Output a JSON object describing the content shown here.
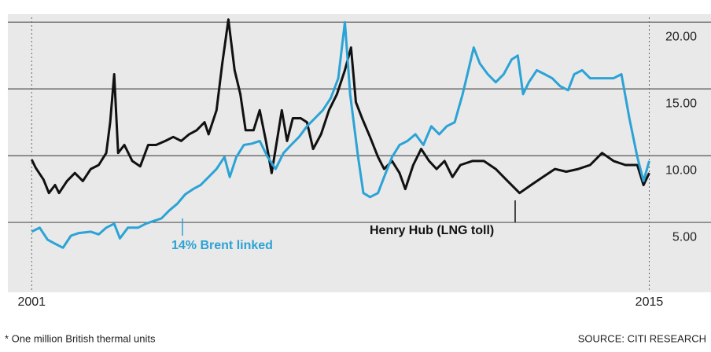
{
  "chart_data": {
    "type": "line",
    "annotations": [
      "14% Brent linked",
      "Henry Hub (LNG toll)"
    ],
    "footnote": "* One million British thermal units",
    "source": "SOURCE: CITI RESEARCH",
    "xlim": [
      2000.46,
      2016.4
    ],
    "xticks": [
      2001,
      2015
    ],
    "ylim": [
      0,
      20.6
    ],
    "yticks": [
      {
        "value": 5,
        "label": "5.00"
      },
      {
        "value": 10,
        "label": "10.00"
      },
      {
        "value": 15,
        "label": "15.00"
      },
      {
        "value": 20,
        "label": "20.00"
      }
    ],
    "grid": true,
    "series": [
      {
        "name": "Henry Hub (LNG toll)",
        "color": "#111111",
        "x": [
          2001.0,
          2001.09,
          2001.27,
          2001.39,
          2001.53,
          2001.62,
          2001.8,
          2001.98,
          2002.16,
          2002.34,
          2002.52,
          2002.69,
          2002.78,
          2002.87,
          2002.96,
          2003.1,
          2003.28,
          2003.46,
          2003.64,
          2003.82,
          2004.03,
          2004.21,
          2004.39,
          2004.57,
          2004.74,
          2004.92,
          2005.01,
          2005.19,
          2005.32,
          2005.46,
          2005.6,
          2005.73,
          2005.85,
          2006.03,
          2006.17,
          2006.31,
          2006.44,
          2006.56,
          2006.67,
          2006.79,
          2006.92,
          2007.1,
          2007.24,
          2007.38,
          2007.56,
          2007.74,
          2007.92,
          2008.1,
          2008.24,
          2008.35,
          2008.49,
          2008.67,
          2008.85,
          2008.99,
          2009.17,
          2009.34,
          2009.47,
          2009.65,
          2009.83,
          2010.01,
          2010.18,
          2010.36,
          2010.54,
          2010.72,
          2010.99,
          2011.25,
          2011.52,
          2011.79,
          2012.06,
          2012.32,
          2012.59,
          2012.86,
          2013.12,
          2013.39,
          2013.66,
          2013.93,
          2014.19,
          2014.46,
          2014.73,
          2014.87,
          2015.0
        ],
        "values": [
          9.7,
          9.1,
          8.2,
          7.2,
          7.8,
          7.2,
          8.1,
          8.7,
          8.1,
          9.0,
          9.3,
          10.2,
          12.5,
          16.1,
          10.2,
          10.8,
          9.6,
          9.2,
          10.8,
          10.8,
          11.1,
          11.4,
          11.1,
          11.6,
          11.9,
          12.5,
          11.6,
          13.4,
          16.9,
          20.2,
          16.4,
          14.6,
          11.9,
          11.9,
          13.4,
          11.1,
          8.7,
          11.1,
          13.4,
          11.1,
          12.8,
          12.8,
          12.5,
          10.5,
          11.6,
          13.4,
          14.6,
          16.4,
          18.1,
          14.0,
          12.8,
          11.4,
          9.9,
          9.0,
          9.6,
          8.7,
          7.5,
          9.3,
          10.5,
          9.6,
          9.0,
          9.6,
          8.4,
          9.3,
          9.6,
          9.6,
          9.0,
          8.1,
          7.2,
          7.8,
          8.4,
          9.0,
          8.8,
          9.0,
          9.3,
          10.2,
          9.6,
          9.3,
          9.3,
          7.8,
          8.7
        ]
      },
      {
        "name": "14% Brent linked",
        "color": "#2ba3d6",
        "x": [
          2001.0,
          2001.18,
          2001.36,
          2001.53,
          2001.71,
          2001.89,
          2002.07,
          2002.34,
          2002.52,
          2002.69,
          2002.87,
          2003.0,
          2003.18,
          2003.41,
          2003.59,
          2003.76,
          2003.94,
          2004.12,
          2004.3,
          2004.48,
          2004.66,
          2004.83,
          2005.01,
          2005.19,
          2005.37,
          2005.49,
          2005.64,
          2005.81,
          2005.99,
          2006.17,
          2006.35,
          2006.53,
          2006.71,
          2006.88,
          2007.06,
          2007.24,
          2007.42,
          2007.6,
          2007.78,
          2007.95,
          2008.1,
          2008.22,
          2008.4,
          2008.52,
          2008.67,
          2008.85,
          2008.99,
          2009.17,
          2009.34,
          2009.52,
          2009.7,
          2009.88,
          2010.06,
          2010.24,
          2010.41,
          2010.59,
          2010.77,
          2010.9,
          2011.02,
          2011.16,
          2011.34,
          2011.52,
          2011.7,
          2011.88,
          2012.02,
          2012.14,
          2012.27,
          2012.45,
          2012.63,
          2012.8,
          2012.98,
          2013.16,
          2013.3,
          2013.48,
          2013.66,
          2013.93,
          2014.19,
          2014.37,
          2014.55,
          2014.73,
          2014.87,
          2015.0
        ],
        "values": [
          4.3,
          4.6,
          3.7,
          3.4,
          3.1,
          4.0,
          4.2,
          4.3,
          4.1,
          4.6,
          4.9,
          3.8,
          4.6,
          4.6,
          4.9,
          5.1,
          5.3,
          5.9,
          6.4,
          7.1,
          7.5,
          7.8,
          8.4,
          9.0,
          9.9,
          8.4,
          9.9,
          10.8,
          10.9,
          11.1,
          9.9,
          9.0,
          10.2,
          10.8,
          11.4,
          12.2,
          12.8,
          13.4,
          14.3,
          15.8,
          20.0,
          14.6,
          9.9,
          7.2,
          6.9,
          7.2,
          8.4,
          9.9,
          10.8,
          11.1,
          11.6,
          10.8,
          12.2,
          11.6,
          12.2,
          12.5,
          14.6,
          16.4,
          18.1,
          16.9,
          16.1,
          15.5,
          16.1,
          17.2,
          17.5,
          14.6,
          15.5,
          16.4,
          16.1,
          15.8,
          15.2,
          14.9,
          16.1,
          16.4,
          15.8,
          15.8,
          15.8,
          16.1,
          12.8,
          9.9,
          8.1,
          9.6
        ]
      }
    ]
  }
}
